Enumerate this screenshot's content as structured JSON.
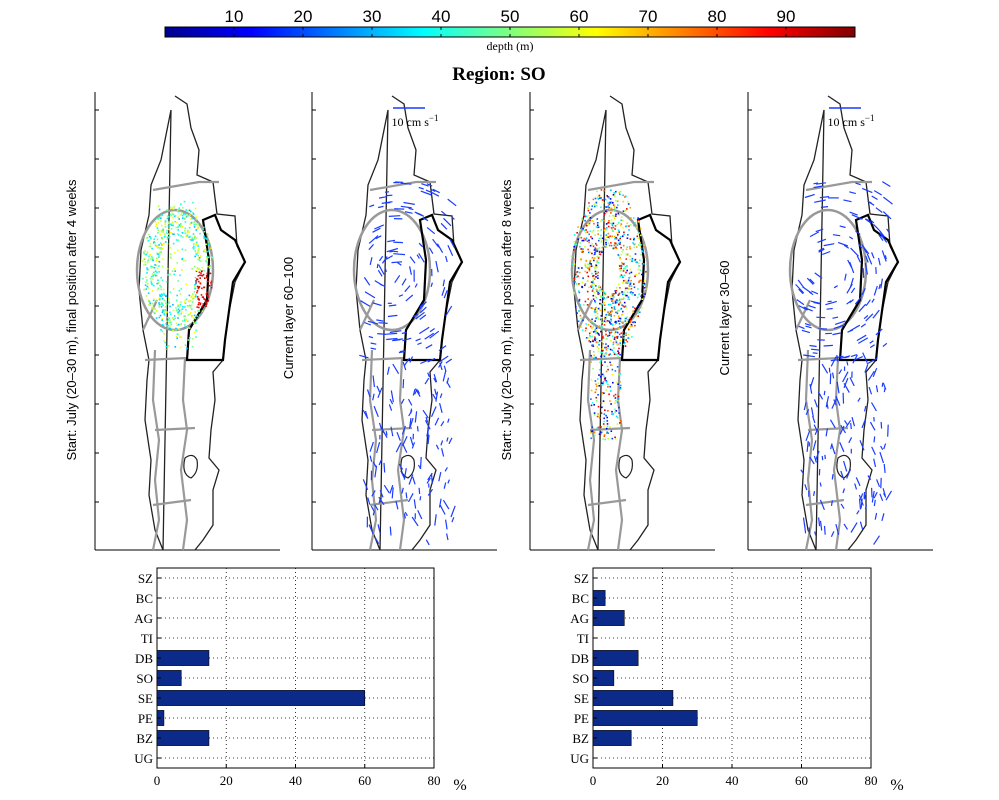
{
  "colorbar": {
    "label": "depth (m)",
    "ticks": [
      10,
      20,
      30,
      40,
      50,
      60,
      70,
      80,
      90
    ],
    "range": [
      0,
      100
    ]
  },
  "title": "Region: SO",
  "panels": {
    "start4_label": "Start: July (20–30 m), final position after 4 weeks",
    "current1_label": "Current layer 60–100",
    "start8_label": "Start: July (20–30 m), final position after 8 weeks",
    "current2_label": "Current layer 30–60",
    "scale_label": "10 cm s",
    "scale_exp": "−1"
  },
  "chart_data": [
    {
      "type": "bar",
      "orientation": "horizontal",
      "categories": [
        "SZ",
        "BC",
        "AG",
        "TI",
        "DB",
        "SO",
        "SE",
        "PE",
        "BZ",
        "UG"
      ],
      "values": [
        0,
        0,
        0,
        0,
        15,
        7,
        60,
        2,
        15,
        0
      ],
      "xlabel": "%",
      "xlim": [
        0,
        80
      ],
      "xticks": [
        0,
        20,
        40,
        60,
        80
      ],
      "grid": true,
      "color": "#0c2a8a"
    },
    {
      "type": "bar",
      "orientation": "horizontal",
      "categories": [
        "SZ",
        "BC",
        "AG",
        "TI",
        "DB",
        "SO",
        "SE",
        "PE",
        "BZ",
        "UG"
      ],
      "values": [
        0,
        3.5,
        9,
        0,
        13,
        6,
        23,
        30,
        11,
        0
      ],
      "xlabel": "%",
      "xlim": [
        0,
        80
      ],
      "xticks": [
        0,
        20,
        40,
        60,
        80
      ],
      "grid": true,
      "color": "#0c2a8a"
    }
  ]
}
